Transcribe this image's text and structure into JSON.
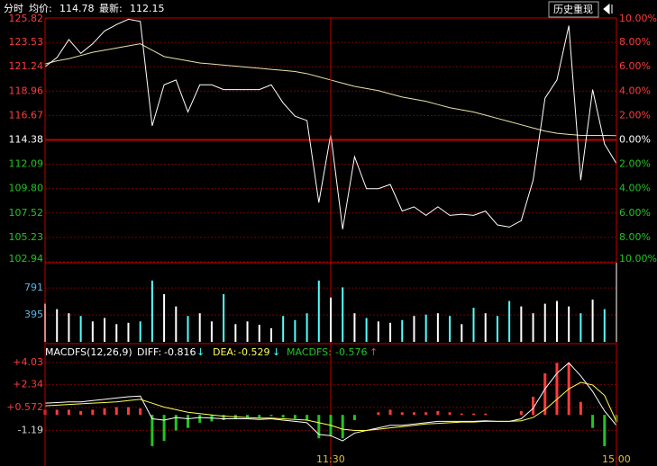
{
  "chart_data": [
    {
      "type": "line",
      "header": {
        "mode": "分时",
        "avg_label": "均价:",
        "avg": 114.78,
        "last_label": "最新:",
        "last": 112.15,
        "button": "历史重现"
      },
      "categories": [
        null,
        null,
        null,
        null,
        null,
        null,
        null,
        null,
        null,
        null,
        null,
        null,
        null,
        null,
        null,
        null,
        null,
        null,
        null,
        null,
        null,
        null,
        null,
        null,
        "11:30",
        null,
        null,
        null,
        null,
        null,
        null,
        null,
        null,
        null,
        null,
        null,
        null,
        null,
        null,
        null,
        null,
        null,
        null,
        null,
        null,
        null,
        null,
        null,
        "15:00"
      ],
      "series": [
        {
          "color": "#ffffff",
          "values": [
            121.25,
            122.1,
            123.8,
            122.5,
            123.4,
            124.6,
            125.2,
            125.7,
            125.5,
            115.7,
            119.55,
            120.0,
            117.0,
            119.55,
            119.55,
            119.1,
            119.1,
            119.1,
            119.1,
            119.55,
            117.85,
            116.6,
            116.2,
            108.5,
            114.9,
            106.0,
            112.8,
            109.8,
            109.8,
            110.2,
            107.7,
            108.1,
            107.3,
            108.1,
            107.3,
            107.4,
            107.3,
            107.7,
            106.4,
            106.2,
            106.8,
            110.6,
            118.3,
            120.0,
            125.1,
            110.6,
            119.1,
            114.0,
            112.15
          ]
        },
        {
          "color": "#e8e2a8",
          "values": [
            121.5,
            121.8,
            122.0,
            122.3,
            122.6,
            122.8,
            123.0,
            123.2,
            123.4,
            122.8,
            122.2,
            122.0,
            121.8,
            121.6,
            121.5,
            121.4,
            121.3,
            121.2,
            121.1,
            121.0,
            120.9,
            120.8,
            120.6,
            120.3,
            120.0,
            119.7,
            119.4,
            119.2,
            119.0,
            118.7,
            118.4,
            118.2,
            118.0,
            117.7,
            117.4,
            117.2,
            117.0,
            116.7,
            116.4,
            116.1,
            115.8,
            115.5,
            115.2,
            115.0,
            114.9,
            114.8,
            114.8,
            114.8,
            114.78
          ]
        }
      ],
      "ylim": [
        102.94,
        125.82
      ],
      "yticks": [
        125.82,
        123.53,
        121.24,
        118.96,
        116.67,
        114.38,
        112.09,
        {
          "value": 109.8,
          "label": "109.80"
        },
        107.52,
        105.23,
        102.94
      ],
      "y2lim": [
        -10,
        10
      ],
      "y2ticks": [
        {
          "value": 10,
          "label": "10.00%"
        },
        {
          "value": 8,
          "label": "8.00%"
        },
        {
          "value": 6,
          "label": "6.00%"
        },
        {
          "value": 4,
          "label": "4.00%"
        },
        {
          "value": 2,
          "label": "2.00%"
        },
        {
          "value": 0,
          "label": "0.00%"
        },
        {
          "value": -2,
          "label": "2.00%"
        },
        {
          "value": -4,
          "label": "4.00%"
        },
        {
          "value": -6,
          "label": "6.00%"
        },
        {
          "value": -8,
          "label": "8.00%"
        },
        {
          "value": -10,
          "label": "10.00%"
        }
      ],
      "up_color": "#ff3b3b",
      "down_color": "#21c521",
      "flat_color": "#ffffff",
      "grid": true
    },
    {
      "type": "bar",
      "values": [
        560,
        480,
        420,
        380,
        300,
        350,
        260,
        280,
        300,
        900,
        700,
        520,
        380,
        420,
        300,
        700,
        260,
        300,
        250,
        200,
        380,
        320,
        420,
        900,
        650,
        800,
        420,
        350,
        300,
        280,
        320,
        380,
        400,
        420,
        380,
        260,
        500,
        420,
        380,
        600,
        520,
        420,
        560,
        600,
        520,
        420,
        620,
        480,
        1162
      ],
      "ylim": [
        0,
        1162
      ],
      "yticks": [
        395,
        791
      ],
      "up_color": "#ffffff",
      "down_color": "#54ffff",
      "tick_color": "#5ab8e8"
    },
    {
      "type": "macd",
      "title": "MACDFS(12,26,9)",
      "indicators": [
        {
          "label": "DIFF:",
          "value": -0.816,
          "arrow": "↓",
          "color": "#ffffff",
          "arrow_color": "#54ffff"
        },
        {
          "label": "DEA:",
          "value": -0.529,
          "arrow": "↓",
          "color": "#ffff54",
          "arrow_color": "#54ffff"
        },
        {
          "label": "MACDFS:",
          "value": -0.576,
          "arrow": "↑",
          "color": "#21c521",
          "arrow_color": "#ff3b3b"
        }
      ],
      "series": [
        {
          "color": "#ffffff",
          "values": [
            0.9,
            0.95,
            1.0,
            1.0,
            1.1,
            1.2,
            1.3,
            1.4,
            1.45,
            -0.3,
            -0.4,
            -0.2,
            -0.3,
            -0.2,
            -0.25,
            -0.3,
            -0.3,
            -0.3,
            -0.35,
            -0.3,
            -0.4,
            -0.5,
            -0.6,
            -1.5,
            -1.6,
            -2.0,
            -1.4,
            -1.2,
            -1.0,
            -0.8,
            -0.8,
            -0.7,
            -0.6,
            -0.5,
            -0.5,
            -0.5,
            -0.5,
            -0.45,
            -0.5,
            -0.5,
            -0.3,
            0.5,
            2.0,
            3.2,
            4.0,
            3.0,
            1.8,
            0.3,
            -0.816
          ]
        },
        {
          "color": "#ffff54",
          "values": [
            0.7,
            0.75,
            0.8,
            0.85,
            0.9,
            0.95,
            1.0,
            1.1,
            1.2,
            0.9,
            0.6,
            0.4,
            0.2,
            0.1,
            0.0,
            -0.1,
            -0.15,
            -0.2,
            -0.25,
            -0.25,
            -0.3,
            -0.35,
            -0.4,
            -0.6,
            -0.8,
            -1.1,
            -1.2,
            -1.2,
            -1.1,
            -1.0,
            -0.9,
            -0.8,
            -0.7,
            -0.65,
            -0.6,
            -0.55,
            -0.55,
            -0.5,
            -0.5,
            -0.5,
            -0.45,
            -0.2,
            0.4,
            1.2,
            2.0,
            2.5,
            2.3,
            1.5,
            -0.529
          ]
        },
        {
          "bars": true,
          "up_color": "#ff3b3b",
          "down_color": "#21c521",
          "values": [
            0.4,
            0.4,
            0.4,
            0.3,
            0.4,
            0.5,
            0.6,
            0.6,
            0.5,
            -2.4,
            -2.0,
            -1.2,
            -1.0,
            -0.6,
            -0.5,
            -0.4,
            -0.3,
            -0.2,
            -0.2,
            -0.1,
            -0.2,
            -0.3,
            -0.4,
            -1.8,
            -1.6,
            -1.8,
            -0.4,
            0,
            0.2,
            0.4,
            0.2,
            0.2,
            0.2,
            0.3,
            0.2,
            0.1,
            0.1,
            0.1,
            0,
            0,
            0.3,
            1.4,
            3.2,
            4.0,
            4.0,
            1.0,
            -1.0,
            -2.4,
            -0.576
          ]
        }
      ],
      "ylim": [
        -3.93,
        5.34
      ],
      "yticks": [
        {
          "value": 4.03,
          "label": "+4.03"
        },
        {
          "value": 2.34,
          "label": "+2.34"
        },
        {
          "value": 0.572,
          "label": "+0.572"
        },
        -1.19
      ],
      "up_color": "#ff3b3b",
      "down_color": "#d8d8d8"
    }
  ]
}
